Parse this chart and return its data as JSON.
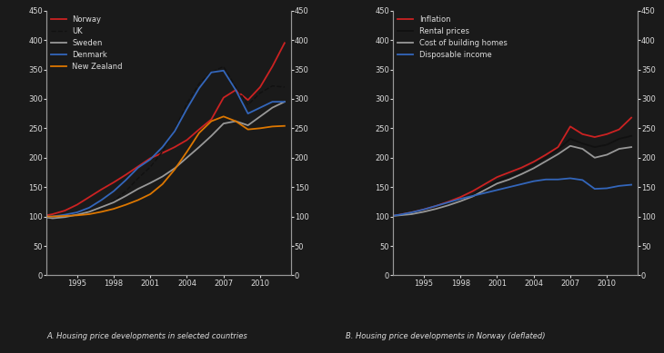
{
  "panel_A": {
    "title": "A. Housing price developments in selected countries",
    "years": [
      1992,
      1993,
      1994,
      1995,
      1996,
      1997,
      1998,
      1999,
      2000,
      2001,
      2002,
      2003,
      2004,
      2005,
      2006,
      2007,
      2008,
      2009,
      2010,
      2011,
      2012
    ],
    "Norway": [
      100,
      104,
      110,
      120,
      133,
      146,
      158,
      171,
      185,
      199,
      208,
      218,
      230,
      248,
      265,
      302,
      315,
      298,
      320,
      355,
      395
    ],
    "UK": [
      100,
      99,
      101,
      104,
      107,
      114,
      126,
      143,
      165,
      184,
      210,
      247,
      292,
      326,
      345,
      355,
      320,
      290,
      310,
      322,
      320
    ],
    "Sweden": [
      100,
      97,
      99,
      103,
      108,
      116,
      124,
      135,
      147,
      157,
      168,
      182,
      200,
      218,
      237,
      258,
      262,
      255,
      270,
      285,
      295
    ],
    "Denmark": [
      100,
      100,
      103,
      107,
      115,
      128,
      143,
      162,
      183,
      197,
      218,
      245,
      283,
      318,
      345,
      348,
      315,
      275,
      285,
      295,
      295
    ],
    "New_Zealand": [
      100,
      100,
      101,
      102,
      104,
      108,
      113,
      120,
      128,
      138,
      155,
      180,
      210,
      242,
      262,
      270,
      262,
      248,
      250,
      253,
      254
    ],
    "colors": {
      "Norway": "#cc2222",
      "UK": "#111111",
      "Sweden": "#999999",
      "Denmark": "#3366bb",
      "New_Zealand": "#dd7700"
    },
    "linestyles": {
      "Norway": "solid",
      "UK": "dashed",
      "Sweden": "solid",
      "Denmark": "solid",
      "New_Zealand": "solid"
    },
    "linewidths": {
      "Norway": 1.3,
      "UK": 1.0,
      "Sweden": 1.3,
      "Denmark": 1.3,
      "New_Zealand": 1.3
    },
    "ylim": [
      0,
      450
    ],
    "yticks": [
      0,
      50,
      100,
      150,
      200,
      250,
      300,
      350,
      400,
      450
    ],
    "xticks": [
      1995,
      1998,
      2001,
      2004,
      2007,
      2010
    ],
    "xlim": [
      1992.5,
      2012.5
    ]
  },
  "panel_B": {
    "title": "B. Housing price developments in Norway (deflated)",
    "years": [
      1992,
      1993,
      1994,
      1995,
      1996,
      1997,
      1998,
      1999,
      2000,
      2001,
      2002,
      2003,
      2004,
      2005,
      2006,
      2007,
      2008,
      2009,
      2010,
      2011,
      2012
    ],
    "Inflation": [
      100,
      103,
      107,
      112,
      118,
      125,
      133,
      143,
      155,
      167,
      175,
      183,
      193,
      205,
      218,
      253,
      240,
      235,
      240,
      248,
      268
    ],
    "Rental_prices": [
      100,
      102,
      105,
      109,
      114,
      120,
      128,
      136,
      148,
      160,
      168,
      177,
      188,
      200,
      214,
      232,
      224,
      218,
      222,
      232,
      237
    ],
    "Cost_of_building": [
      100,
      102,
      104,
      108,
      113,
      119,
      126,
      134,
      145,
      156,
      163,
      172,
      182,
      194,
      206,
      220,
      215,
      200,
      205,
      215,
      218
    ],
    "Disposable_income": [
      100,
      103,
      107,
      112,
      118,
      124,
      130,
      135,
      140,
      145,
      150,
      155,
      160,
      163,
      163,
      165,
      162,
      147,
      148,
      152,
      154
    ],
    "colors": {
      "Inflation": "#cc2222",
      "Rental_prices": "#111111",
      "Cost_of_building": "#999999",
      "Disposable_income": "#3366bb"
    },
    "linestyles": {
      "Inflation": "solid",
      "Rental_prices": "solid",
      "Cost_of_building": "solid",
      "Disposable_income": "solid"
    },
    "linewidths": {
      "Inflation": 1.3,
      "Rental_prices": 1.3,
      "Cost_of_building": 1.3,
      "Disposable_income": 1.3
    },
    "ylim": [
      0,
      450
    ],
    "yticks": [
      0,
      50,
      100,
      150,
      200,
      250,
      300,
      350,
      400,
      450
    ],
    "xticks": [
      1995,
      1998,
      2001,
      2004,
      2007,
      2010
    ],
    "xlim": [
      1992.5,
      2012.5
    ]
  },
  "legend_A": {
    "Norway": "Norway",
    "UK": "UK",
    "Sweden": "Sweden",
    "Denmark": "Denmark",
    "New_Zealand": "New Zealand"
  },
  "legend_B": {
    "Inflation": "Inflation",
    "Rental_prices": "Rental prices",
    "Cost_of_building": "Cost of building homes",
    "Disposable_income": "Disposable income"
  },
  "background_color": "#1a1a1a",
  "plot_bg_color": "#1a1a1a",
  "text_color": "#dddddd",
  "spine_color": "#999999"
}
